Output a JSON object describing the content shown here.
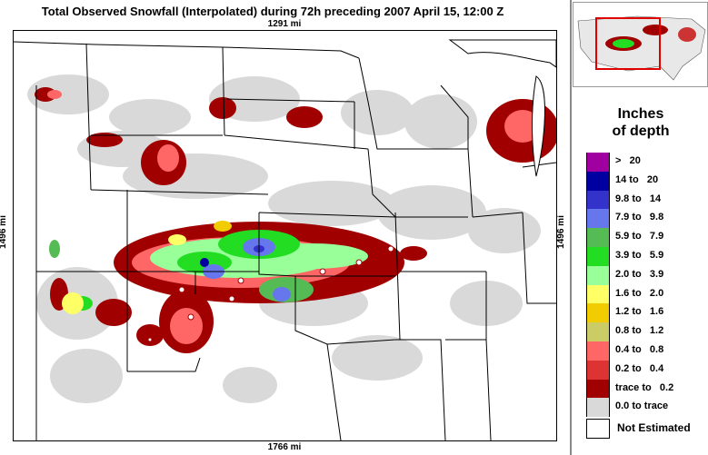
{
  "title": "Total Observed Snowfall (Interpolated) during 72h preceding 2007 April 15, 12:00 Z",
  "scale_top": "1291 mi",
  "scale_bottom": "1766 mi",
  "scale_left": "1496 mi",
  "scale_right": "1496 mi",
  "legend": {
    "title_line1": "Inches",
    "title_line2": "of depth",
    "items": [
      {
        "label": ">   20",
        "color": "#a000a0"
      },
      {
        "label": "14 to   20",
        "color": "#0000a0"
      },
      {
        "label": "9.8 to   14",
        "color": "#3333cc"
      },
      {
        "label": "7.9 to   9.8",
        "color": "#6677ee"
      },
      {
        "label": "5.9 to   7.9",
        "color": "#55bb55"
      },
      {
        "label": "3.9 to   5.9",
        "color": "#22dd22"
      },
      {
        "label": "2.0 to   3.9",
        "color": "#99ff99"
      },
      {
        "label": "1.6 to   2.0",
        "color": "#ffff66"
      },
      {
        "label": "1.2 to   1.6",
        "color": "#f0cc00"
      },
      {
        "label": "0.8 to   1.2",
        "color": "#cccc66"
      },
      {
        "label": "0.4 to   0.8",
        "color": "#ff6666"
      },
      {
        "label": "0.2 to   0.4",
        "color": "#dd3333"
      },
      {
        "label": "trace to   0.2",
        "color": "#a00000"
      },
      {
        "label": "0.0 to trace",
        "color": "#d9d9d9"
      }
    ],
    "not_estimated_label": "Not Estimated"
  }
}
